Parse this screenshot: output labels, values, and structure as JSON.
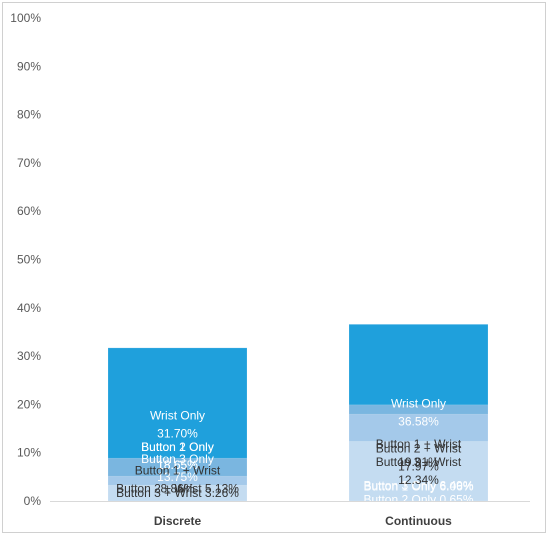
{
  "chart_data": {
    "type": "stacked-bar-100",
    "categories": [
      "Discrete",
      "Continuous"
    ],
    "ylim": [
      0,
      100
    ],
    "yticks": [
      "0%",
      "10%",
      "20%",
      "30%",
      "40%",
      "50%",
      "60%",
      "70%",
      "80%",
      "90%",
      "100%"
    ],
    "grid": false,
    "legend": "none",
    "series": [
      {
        "key": "button1",
        "label": "Button 1 Only",
        "color": "#156a9a",
        "values": [
          18.65,
          6.06
        ],
        "text_color": "#ffffff"
      },
      {
        "key": "button2",
        "label": "Button 2 Only",
        "color": "#1a7db3",
        "values": [
          18.65,
          0.65
        ],
        "text_color": "#ffffff"
      },
      {
        "key": "button3",
        "label": "Button 3 Only",
        "color": "#1f8fcb",
        "values": [
          13.75,
          6.49
        ],
        "text_color": "#ffffff"
      },
      {
        "key": "wrist",
        "label": "Wrist Only",
        "color": "#1fa0dc",
        "values": [
          31.7,
          36.58
        ],
        "text_color": "#ffffff"
      },
      {
        "key": "button1_wrist",
        "label": "Button 1 + Wrist",
        "color": "#7ab6e0",
        "values": [
          8.86,
          19.91
        ],
        "text_color": "#333333"
      },
      {
        "key": "button2_wrist",
        "label": "Button 2 + Wrist",
        "color": "#a4c9ea",
        "values": [
          5.13,
          17.97
        ],
        "text_color": "#333333"
      },
      {
        "key": "button3_wrist",
        "label": "Button 3 + Wrist",
        "color": "#c4dcf1",
        "values": [
          3.26,
          12.34
        ],
        "text_color": "#333333"
      }
    ],
    "segment_labels": [
      [
        [
          "Button 1 Only",
          "18.65%"
        ],
        [
          "Button 2 Only",
          "18.65%"
        ],
        [
          "Button 3 Only",
          "13.75%"
        ],
        [
          "Wrist Only",
          "31.70%"
        ],
        [
          "Button 1 + Wrist",
          "8.86%"
        ],
        [
          "Button 2 + Wrist 5.13%"
        ],
        [
          "Button 3 + Wrist 3.26%"
        ]
      ],
      [
        [
          "Button 1 Only 6.06%"
        ],
        [
          "Button 2 Only 0.65%"
        ],
        [
          "Button 3 Only 6.49%"
        ],
        [
          "Wrist Only",
          "36.58%"
        ],
        [
          "Button 1 + Wrist",
          "19.91%"
        ],
        [
          "Button 2 + Wrist",
          "17.97%"
        ],
        [
          "Button 3 + Wrist",
          "12.34%"
        ]
      ]
    ]
  }
}
